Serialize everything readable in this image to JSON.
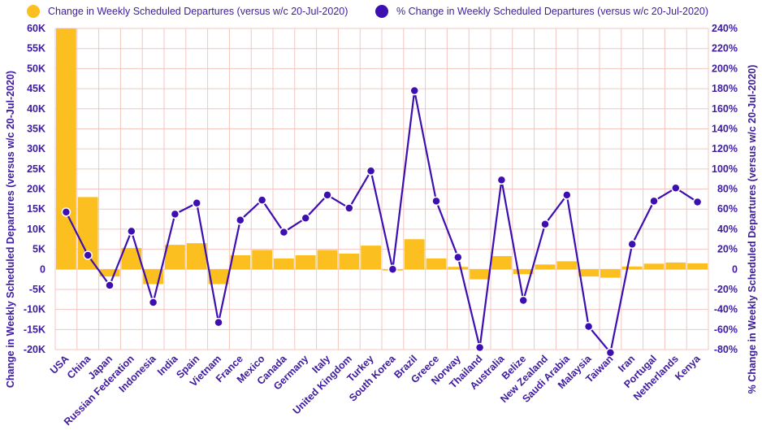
{
  "legend": {
    "bar_label": "Change in Weekly Scheduled Departures (versus w/c 20-Jul-2020)",
    "line_label": "% Change in Weekly Scheduled Departures (versus w/c 20-Jul-2020)"
  },
  "colors": {
    "bar": "#fbbf1f",
    "line": "#3d0fb0",
    "grid": "#f3c6c0",
    "text": "#3d1a9e"
  },
  "chart_data": {
    "type": "bar",
    "title": "",
    "xlabel": "",
    "ylabel": "Change in Weekly Scheduled Departures (versus w/c 20-Jul-2020)",
    "y2label": "% Change in Weekly Scheduled Departures (versus w/c 20-Jul-2020)",
    "ylim": [
      -20000,
      60000
    ],
    "y2lim": [
      -80,
      240
    ],
    "y_ticks": [
      "60K",
      "55K",
      "50K",
      "45K",
      "40K",
      "35K",
      "30K",
      "25K",
      "20K",
      "15K",
      "10K",
      "5K",
      "0",
      "-5K",
      "-10K",
      "-15K",
      "-20K"
    ],
    "y2_ticks": [
      "240%",
      "220%",
      "200%",
      "180%",
      "160%",
      "140%",
      "120%",
      "100%",
      "80%",
      "60%",
      "40%",
      "20%",
      "0",
      "-20%",
      "-40%",
      "-60%",
      "-80%"
    ],
    "grid": true,
    "legend_position": "top",
    "categories": [
      "USA",
      "China",
      "Japan",
      "Russian Federation",
      "Indonesia",
      "India",
      "Spain",
      "Vietnam",
      "France",
      "Mexico",
      "Canada",
      "Germany",
      "Italy",
      "United Kingdom",
      "Turkey",
      "South Korea",
      "Brazil",
      "Greece",
      "Norway",
      "Thailand",
      "Australia",
      "Belize",
      "New Zealand",
      "Saudi Arabia",
      "Malaysia",
      "Taiwan",
      "Iran",
      "Portugal",
      "Netherlands",
      "Kenya"
    ],
    "series": [
      {
        "name": "Change in Weekly Scheduled Departures (versus w/c 20-Jul-2020)",
        "type": "bar",
        "axis": "left",
        "values": [
          60000,
          18000,
          -1800,
          5300,
          -3700,
          6100,
          6500,
          -3700,
          3500,
          4800,
          2700,
          3500,
          4800,
          3900,
          5900,
          -300,
          7500,
          2700,
          600,
          -2500,
          3300,
          -1200,
          1200,
          2000,
          -1800,
          -2100,
          700,
          1400,
          1700,
          1500
        ]
      },
      {
        "name": "% Change in Weekly Scheduled Departures (versus w/c 20-Jul-2020)",
        "type": "line",
        "axis": "right",
        "values": [
          57,
          14,
          -16,
          38,
          -33,
          55,
          66,
          -53,
          49,
          69,
          37,
          51,
          74,
          61,
          98,
          0,
          178,
          68,
          12,
          -78,
          89,
          -31,
          45,
          74,
          -57,
          -83,
          25,
          68,
          81,
          67
        ]
      }
    ]
  }
}
